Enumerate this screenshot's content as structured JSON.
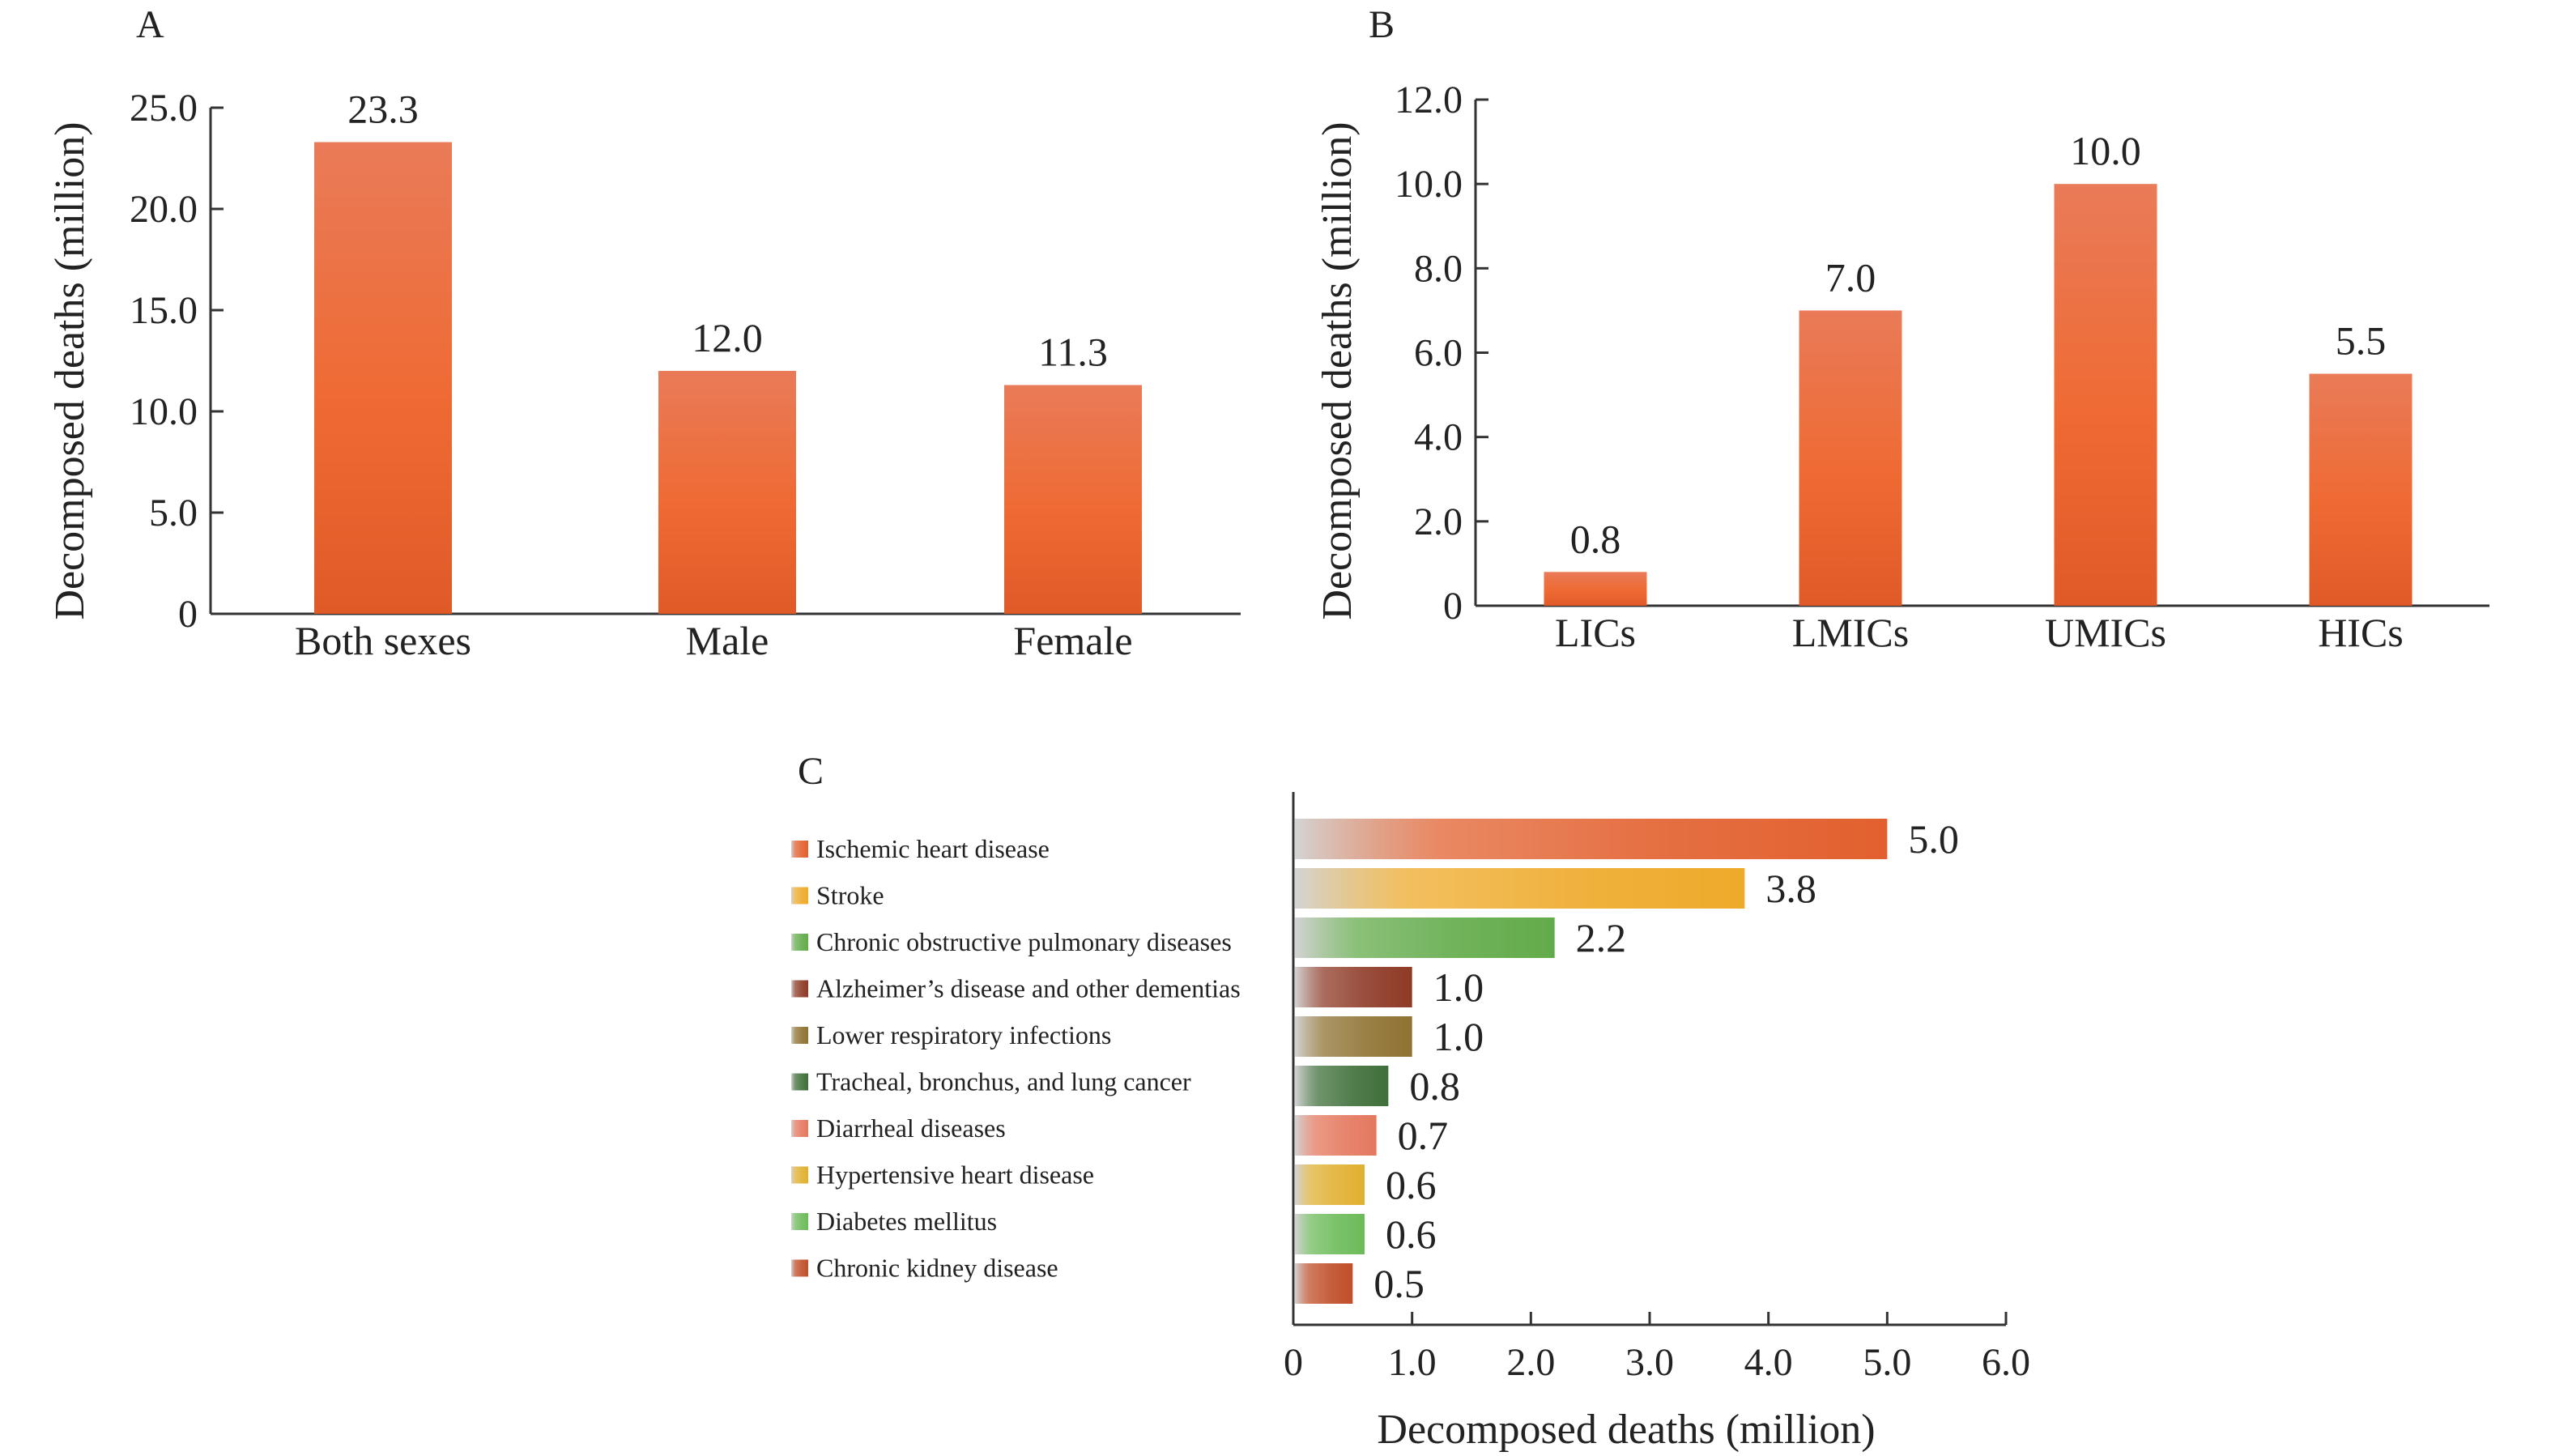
{
  "panels": {
    "A": {
      "letter": "A"
    },
    "B": {
      "letter": "B"
    },
    "C": {
      "letter": "C"
    }
  },
  "colors": {
    "bar_top": "#e97b58",
    "bar_mid": "#ef6a33",
    "bar_bottom": "#e05a28",
    "axis": "#333333",
    "text": "#222222"
  },
  "chart_data": [
    {
      "id": "A",
      "type": "bar",
      "categories": [
        "Both sexes",
        "Male",
        "Female"
      ],
      "values": [
        23.3,
        12.0,
        11.3
      ],
      "value_labels": [
        "23.3",
        "12.0",
        "11.3"
      ],
      "ylabel": "Decomposed deaths (million)",
      "xlabel": "",
      "ylim": [
        0,
        25
      ],
      "yticks": [
        0,
        5,
        10,
        15,
        20,
        25
      ],
      "ytick_labels": [
        "0",
        "5.0",
        "10.0",
        "15.0",
        "20.0",
        "25.0"
      ],
      "grid": false
    },
    {
      "id": "B",
      "type": "bar",
      "categories": [
        "LICs",
        "LMICs",
        "UMICs",
        "HICs"
      ],
      "values": [
        0.8,
        7.0,
        10.0,
        5.5
      ],
      "value_labels": [
        "0.8",
        "7.0",
        "10.0",
        "5.5"
      ],
      "ylabel": "Decomposed deaths (million)",
      "xlabel": "",
      "ylim": [
        0,
        12
      ],
      "yticks": [
        0,
        2,
        4,
        6,
        8,
        10,
        12
      ],
      "ytick_labels": [
        "0",
        "2.0",
        "4.0",
        "6.0",
        "8.0",
        "10.0",
        "12.0"
      ],
      "grid": false
    },
    {
      "id": "C",
      "type": "bar",
      "orientation": "horizontal",
      "categories": [
        "Ischemic heart disease",
        "Stroke",
        "Chronic obstructive pulmonary diseases",
        "Alzheimer’s disease and other dementias",
        "Lower respiratory infections",
        "Tracheal, bronchus, and lung cancer",
        "Diarrheal diseases",
        "Hypertensive heart disease",
        "Diabetes mellitus",
        "Chronic kidney disease"
      ],
      "values": [
        5.0,
        3.8,
        2.2,
        1.0,
        1.0,
        0.8,
        0.7,
        0.6,
        0.6,
        0.5
      ],
      "value_labels": [
        "5.0",
        "3.8",
        "2.2",
        "1.0",
        "1.0",
        "0.8",
        "0.7",
        "0.6",
        "0.6",
        "0.5"
      ],
      "bar_colors": [
        "#e2602e",
        "#eeaa2a",
        "#62ab4a",
        "#8e3a26",
        "#8f7232",
        "#3f6f3a",
        "#e4785e",
        "#e0b030",
        "#6cbb5a",
        "#c04e28"
      ],
      "xlabel": "Decomposed deaths (million)",
      "ylabel": "",
      "xlim": [
        0,
        6
      ],
      "xticks": [
        0,
        1,
        2,
        3,
        4,
        5,
        6
      ],
      "xtick_labels": [
        "0",
        "1.0",
        "2.0",
        "3.0",
        "4.0",
        "5.0",
        "6.0"
      ],
      "legend": "left",
      "grid": false
    }
  ]
}
